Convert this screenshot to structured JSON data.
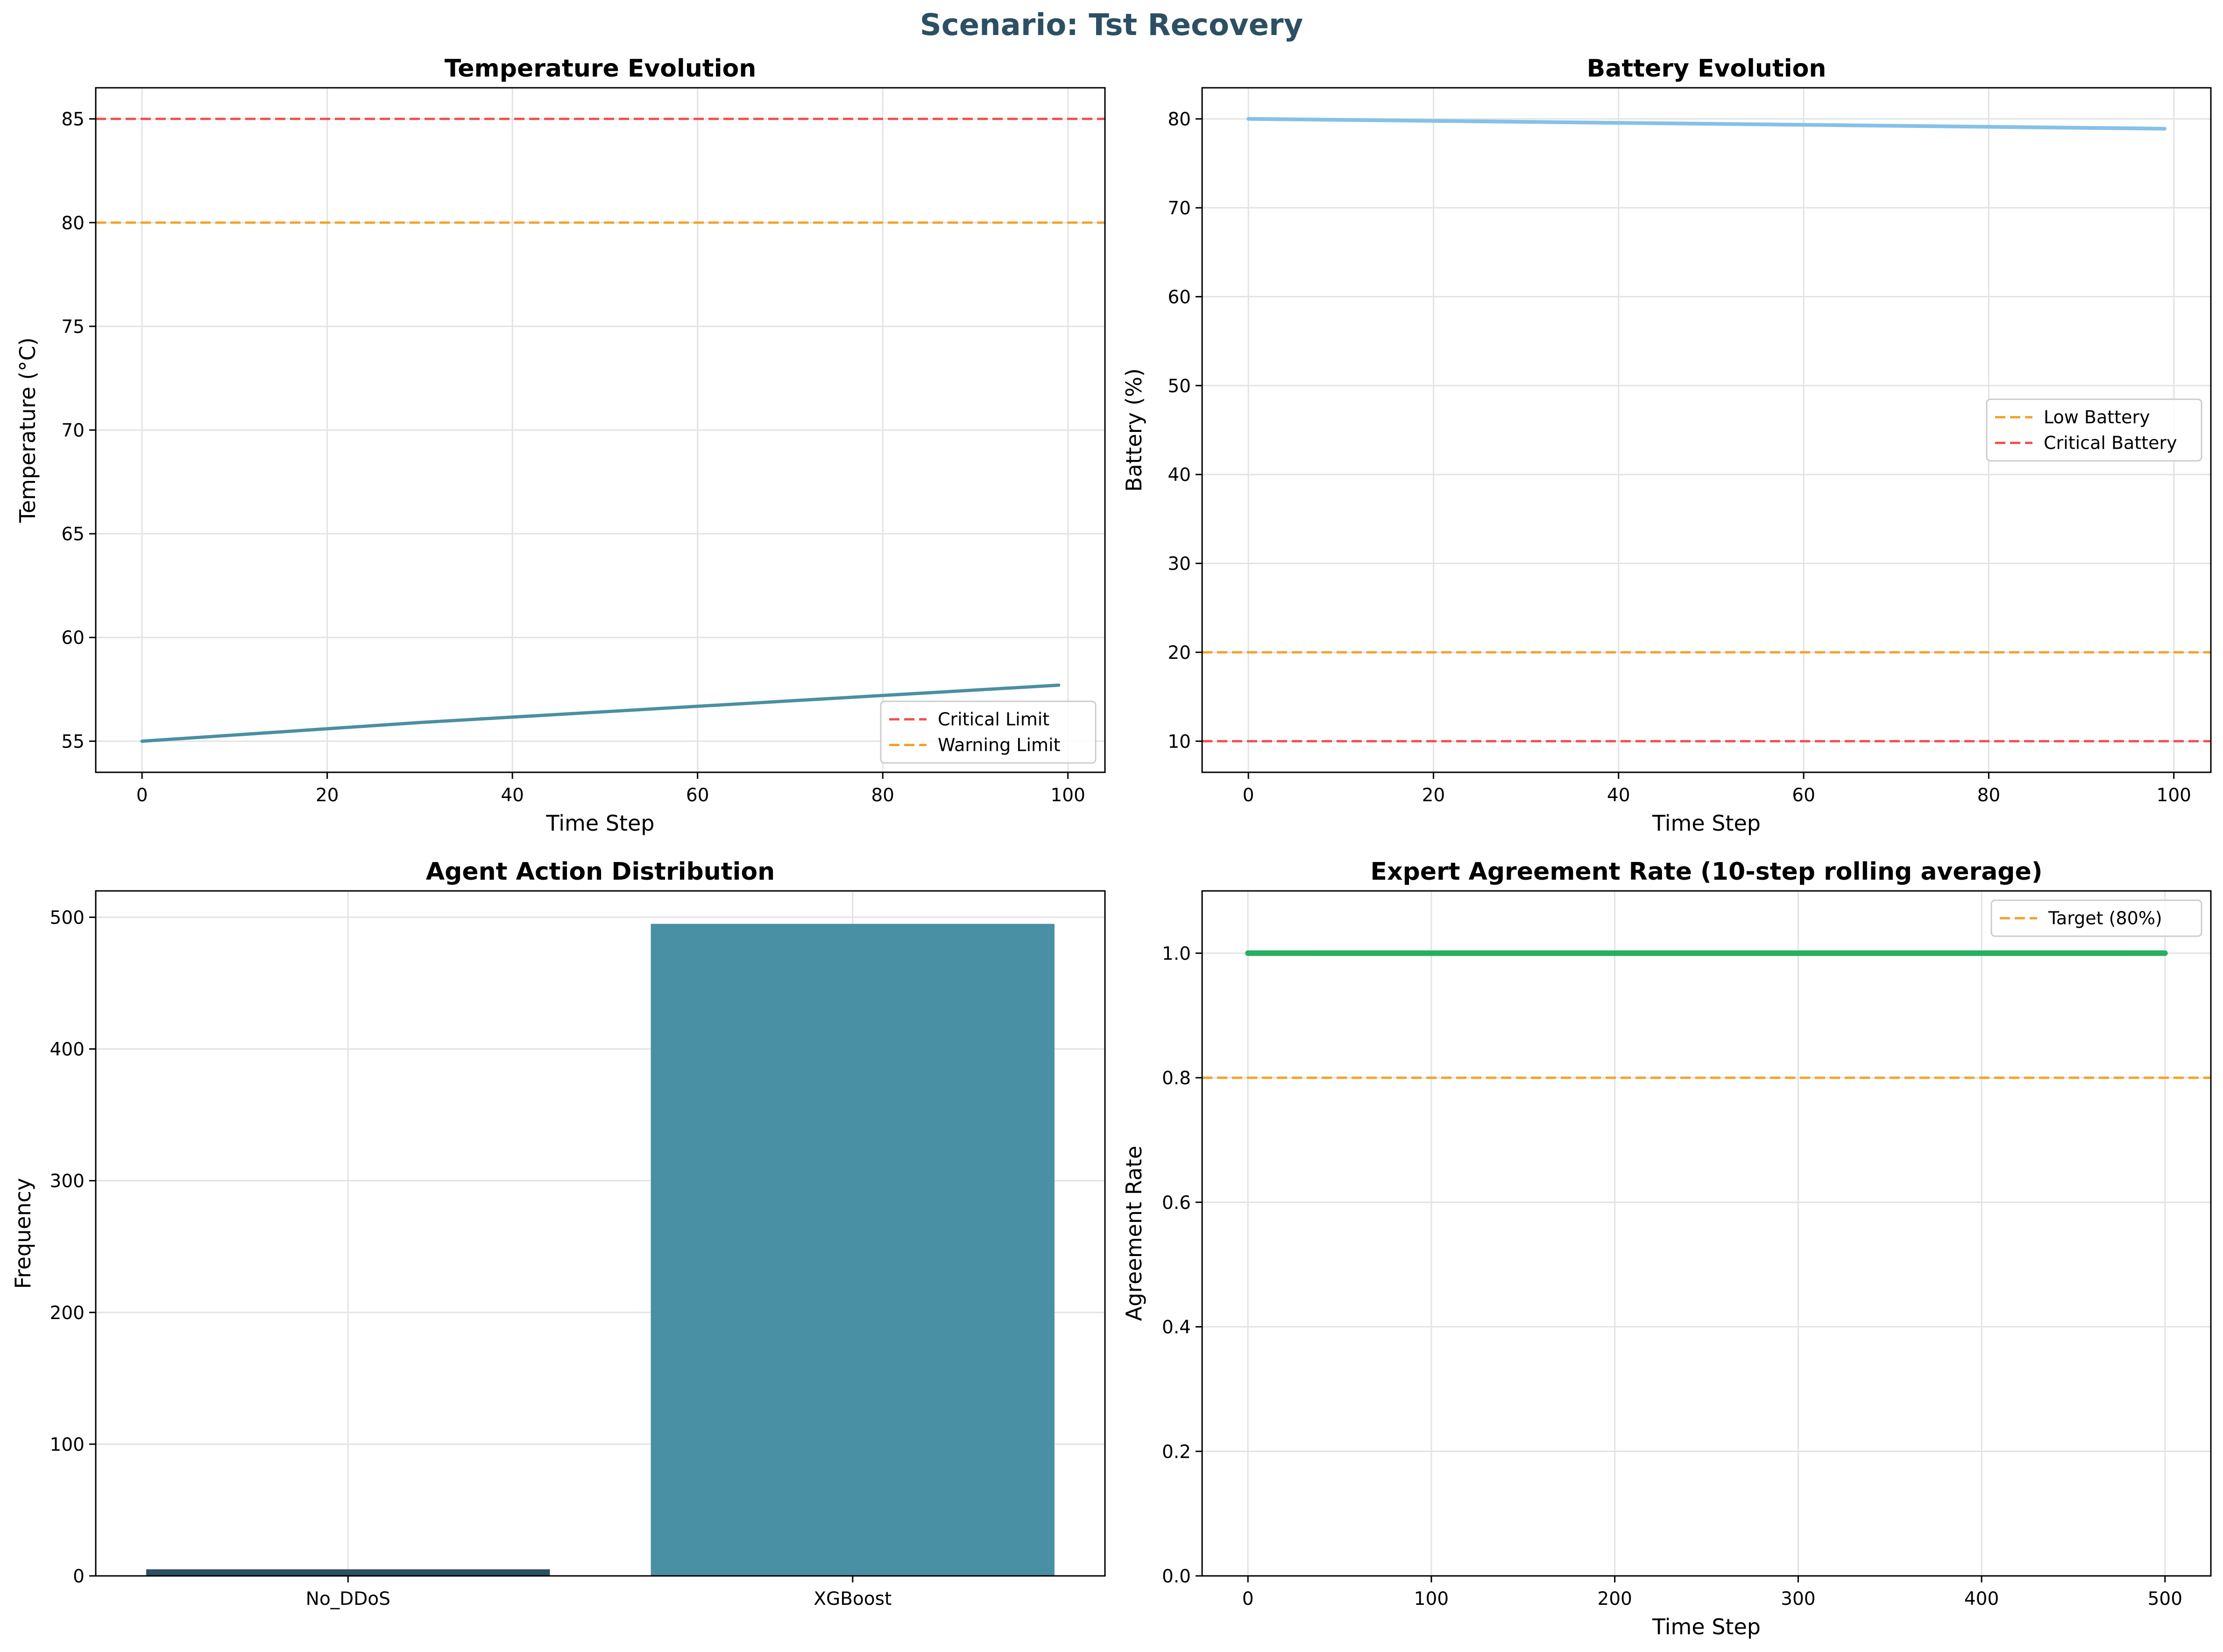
{
  "figure": {
    "title": "Scenario: Tst Recovery",
    "title_color": "#2c4f63"
  },
  "chart_data": [
    {
      "id": "temperature",
      "type": "line",
      "title": "Temperature Evolution",
      "xlabel": "Time Step",
      "ylabel": "Temperature (°C)",
      "xlim": [
        -5,
        104
      ],
      "ylim": [
        53.5,
        86.5
      ],
      "xticks": [
        0,
        20,
        40,
        60,
        80,
        100
      ],
      "yticks": [
        55,
        60,
        65,
        70,
        75,
        80,
        85
      ],
      "grid": true,
      "legend_position": "lower-right",
      "series": [
        {
          "x": [
            0,
            30,
            99
          ],
          "y": [
            55.0,
            55.9,
            57.7
          ],
          "color": "#4a8fa3",
          "width": 7
        }
      ],
      "hlines": [
        {
          "name": "Critical Limit",
          "y": 85,
          "color": "#ef5350"
        },
        {
          "name": "Warning Limit",
          "y": 80,
          "color": "#f5a12a"
        }
      ]
    },
    {
      "id": "battery",
      "type": "line",
      "title": "Battery Evolution",
      "xlabel": "Time Step",
      "ylabel": "Battery (%)",
      "xlim": [
        -5,
        104
      ],
      "ylim": [
        6.5,
        83.5
      ],
      "xticks": [
        0,
        20,
        40,
        60,
        80,
        100
      ],
      "yticks": [
        10,
        20,
        30,
        40,
        50,
        60,
        70,
        80
      ],
      "grid": true,
      "legend_position": "center-right",
      "series": [
        {
          "x": [
            0,
            99
          ],
          "y": [
            80.0,
            78.9
          ],
          "color": "#85c1e9",
          "width": 8
        }
      ],
      "hlines": [
        {
          "name": "Low Battery",
          "y": 20,
          "color": "#f5a12a"
        },
        {
          "name": "Critical Battery",
          "y": 10,
          "color": "#ef5350"
        }
      ]
    },
    {
      "id": "actions",
      "type": "bar",
      "title": "Agent Action Distribution",
      "xlabel": "",
      "ylabel": "Frequency",
      "ylim": [
        0,
        520
      ],
      "yticks": [
        0,
        100,
        200,
        300,
        400,
        500
      ],
      "grid": true,
      "categories": [
        "No_DDoS",
        "XGBoost"
      ],
      "values": [
        5,
        495
      ],
      "colors": [
        "#2c4f63",
        "#4a90a4"
      ]
    },
    {
      "id": "agreement",
      "type": "line",
      "title": "Expert Agreement Rate (10-step rolling average)",
      "xlabel": "Time Step",
      "ylabel": "Agreement Rate",
      "xlim": [
        -25,
        525
      ],
      "ylim": [
        0.0,
        1.1
      ],
      "xticks": [
        0,
        100,
        200,
        300,
        400,
        500
      ],
      "yticks": [
        0.0,
        0.2,
        0.4,
        0.6,
        0.8,
        1.0
      ],
      "ytick_labels": [
        "0.0",
        "0.2",
        "0.4",
        "0.6",
        "0.8",
        "1.0"
      ],
      "grid": true,
      "legend_position": "top-right",
      "series": [
        {
          "x": [
            0,
            500
          ],
          "y": [
            1.0,
            1.0
          ],
          "color": "#27ae60",
          "width": 12
        }
      ],
      "hlines": [
        {
          "name": "Target (80%)",
          "y": 0.8,
          "color": "#f5a12a"
        }
      ]
    }
  ]
}
